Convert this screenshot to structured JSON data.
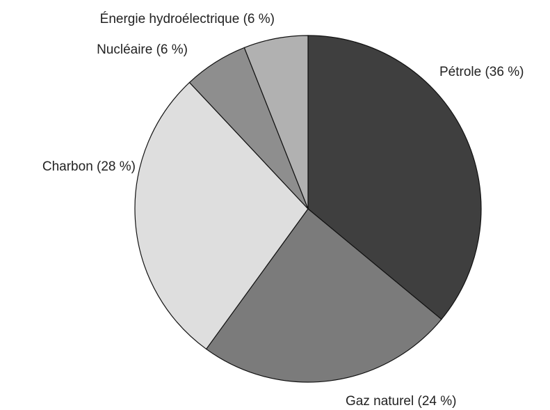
{
  "chart_data": {
    "type": "pie",
    "categories": [
      "Pétrole (36 %)",
      "Gaz naturel (24 %)",
      "Charbon (28 %)",
      "Nucléaire (6 %)",
      "Énergie hydroélectrique (6 %)"
    ],
    "values": [
      36,
      24,
      28,
      6,
      6
    ],
    "colors": [
      "#3f3f3f",
      "#7b7b7b",
      "#dedede",
      "#8e8e8e",
      "#b1b1b1"
    ]
  }
}
